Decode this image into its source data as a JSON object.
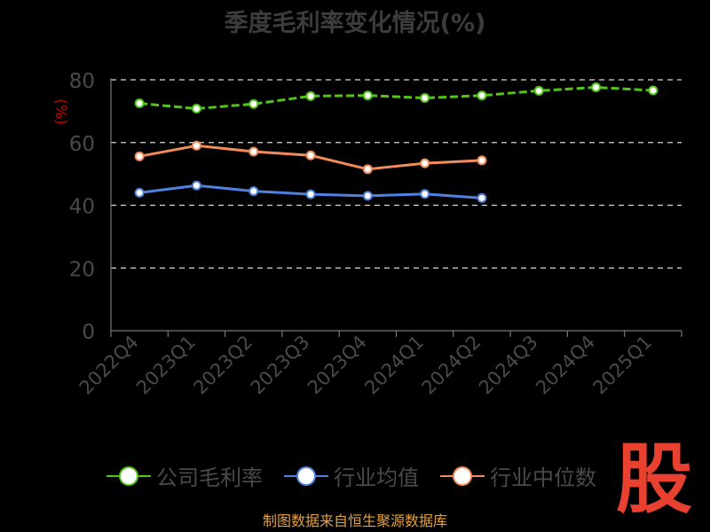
{
  "chart_data": {
    "type": "line",
    "title": "季度毛利率变化情况(%)",
    "ylabel": "(%)",
    "xlabel": "",
    "categories": [
      "2022Q4",
      "2023Q1",
      "2023Q2",
      "2023Q3",
      "2023Q4",
      "2024Q1",
      "2024Q2",
      "2024Q3",
      "2024Q4",
      "2025Q1"
    ],
    "ylim": [
      0,
      80
    ],
    "yticks": [
      0,
      20,
      40,
      60,
      80
    ],
    "grid": true,
    "legend_position": "bottom",
    "series": [
      {
        "name": "公司毛利率",
        "color": "#52c41a",
        "dashed": true,
        "values": [
          72.5,
          70.8,
          72.3,
          74.8,
          75.0,
          74.2,
          75.0,
          76.5,
          77.6,
          76.6
        ]
      },
      {
        "name": "行业均值",
        "color": "#4f82e0",
        "dashed": false,
        "values": [
          44.0,
          46.3,
          44.5,
          43.5,
          43.0,
          43.6,
          42.3,
          null,
          null,
          null
        ]
      },
      {
        "name": "行业中位数",
        "color": "#f28c5a",
        "dashed": false,
        "values": [
          55.6,
          59.0,
          57.1,
          55.9,
          51.5,
          53.4,
          54.3,
          null,
          null,
          null
        ]
      }
    ]
  },
  "footer": {
    "source": "制图数据来自恒生聚源数据库",
    "watermark": "股"
  }
}
